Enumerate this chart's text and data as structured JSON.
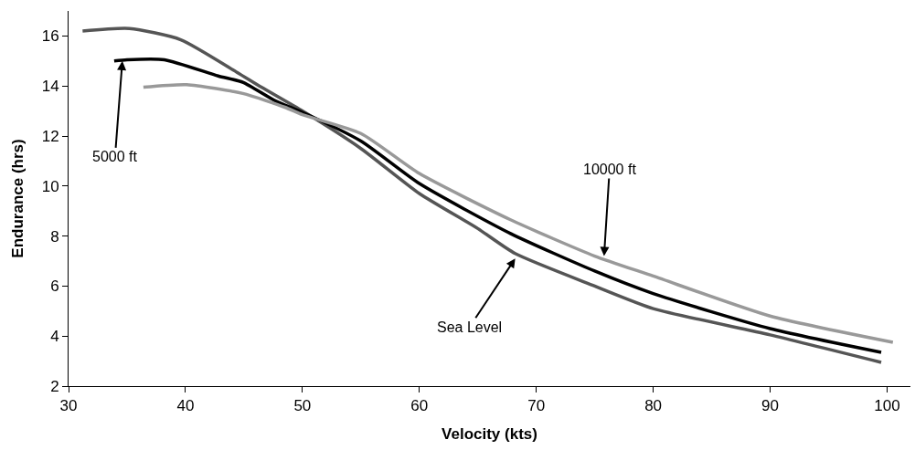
{
  "chart_data": {
    "type": "line",
    "xlabel": "Velocity (kts)",
    "ylabel": "Endurance (hrs)",
    "xlim": [
      30,
      102
    ],
    "xticks": [
      30,
      40,
      50,
      60,
      70,
      80,
      90,
      100
    ],
    "ylim": [
      2,
      17
    ],
    "yticks": [
      2,
      4,
      6,
      8,
      10,
      12,
      14,
      16
    ],
    "marker": "none",
    "line_style": "solid",
    "series": [
      {
        "color": "#555555",
        "x": [
          31.2,
          35.2,
          39.6,
          44.4,
          46.5,
          50,
          55,
          60,
          65,
          68.2,
          75,
          80,
          90,
          99.5
        ],
        "values": [
          16.2,
          16.3,
          15.85,
          14.55,
          13.95,
          13.0,
          11.5,
          9.7,
          8.3,
          7.3,
          6.0,
          5.1,
          4.05,
          2.95
        ]
      },
      {
        "color": "#000000",
        "x": [
          33.9,
          35,
          38.2,
          42.8,
          44.9,
          47.7,
          50,
          55,
          60,
          67.8,
          75,
          80,
          90,
          99.5
        ],
        "values": [
          15.0,
          15.05,
          15.05,
          14.4,
          14.15,
          13.4,
          12.95,
          11.8,
          10.1,
          8.1,
          6.6,
          5.7,
          4.3,
          3.35
        ]
      },
      {
        "color": "#999999",
        "x": [
          36.4,
          40.1,
          44.9,
          48.5,
          50,
          55,
          60,
          67.8,
          75,
          80,
          90,
          100.5
        ],
        "values": [
          13.95,
          14.05,
          13.7,
          13.15,
          12.85,
          12.1,
          10.5,
          8.65,
          7.2,
          6.4,
          4.8,
          3.75
        ]
      }
    ],
    "annotations": [
      {
        "text": "5000 ft",
        "x": 34.6,
        "y": 15.0
      },
      {
        "text": "10000 ft",
        "x": 75.8,
        "y": 7.2
      },
      {
        "text": "Sea Level",
        "x": 68.2,
        "y": 7.1
      }
    ]
  }
}
